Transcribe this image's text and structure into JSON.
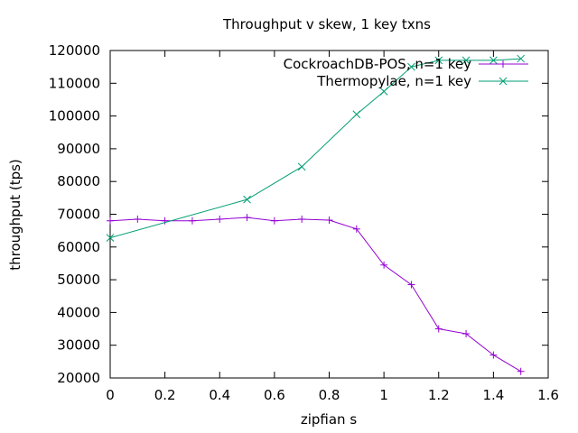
{
  "chart_data": {
    "type": "line",
    "title": "Throughput v skew, 1 key txns",
    "xlabel": "zipfian s",
    "ylabel": "throughput (tps)",
    "xlim": [
      0,
      1.6
    ],
    "ylim": [
      20000,
      120000
    ],
    "x_ticks": [
      0,
      0.2,
      0.4,
      0.6,
      0.8,
      1,
      1.2,
      1.4,
      1.6
    ],
    "y_ticks": [
      20000,
      30000,
      40000,
      50000,
      60000,
      70000,
      80000,
      90000,
      100000,
      110000,
      120000
    ],
    "legend_position": "top-right",
    "grid": false,
    "series": [
      {
        "name": "CockroachDB-POS, n=1 key",
        "color": "#9400d3",
        "marker": "plus",
        "x": [
          0,
          0.1,
          0.2,
          0.3,
          0.4,
          0.5,
          0.6,
          0.7,
          0.8,
          0.9,
          1.0,
          1.1,
          1.2,
          1.3,
          1.4,
          1.5
        ],
        "y": [
          68000,
          68500,
          68000,
          68000,
          68500,
          69000,
          68000,
          68500,
          68200,
          65500,
          54500,
          48500,
          35000,
          33500,
          27000,
          22000
        ]
      },
      {
        "name": "Thermopylae, n=1 key",
        "color": "#009e73",
        "marker": "x",
        "x": [
          0,
          0.5,
          0.7,
          0.9,
          1.0,
          1.1,
          1.2,
          1.3,
          1.4,
          1.5
        ],
        "y": [
          62800,
          74500,
          84500,
          100500,
          107500,
          115000,
          117000,
          117000,
          117000,
          117500
        ]
      }
    ]
  }
}
